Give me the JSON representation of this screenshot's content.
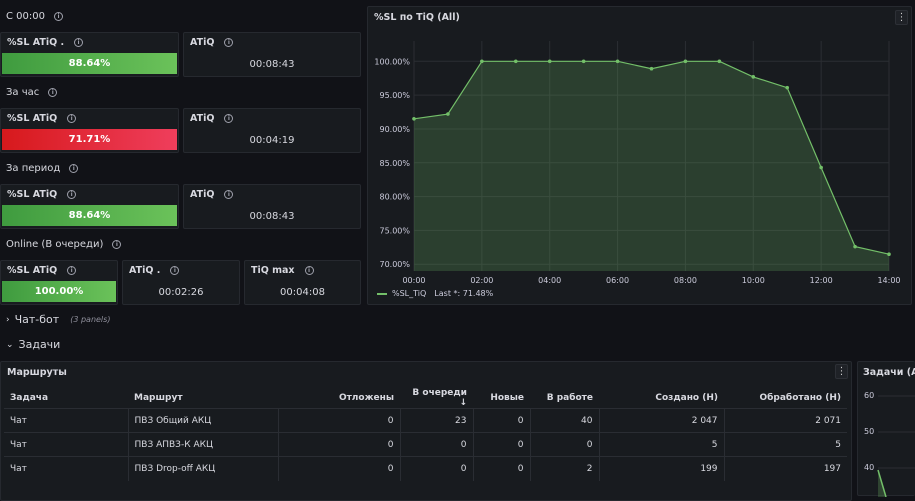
{
  "sections": {
    "s1": "С 00:00",
    "s2": "За час",
    "s3": "За период",
    "s4": "Online (В очереди)"
  },
  "stats": {
    "r1": {
      "sl_title": "%SL ATiQ .",
      "sl_value": "88.64%",
      "atiq_title": "ATiQ",
      "atiq_value": "00:08:43"
    },
    "r2": {
      "sl_title": "%SL ATiQ",
      "sl_value": "71.71%",
      "atiq_title": "ATiQ",
      "atiq_value": "00:04:19"
    },
    "r3": {
      "sl_title": "%SL ATiQ",
      "sl_value": "88.64%",
      "atiq_title": "ATiQ",
      "atiq_value": "00:08:43"
    },
    "r4": {
      "sl_title": "%SL ATiQ",
      "sl_value": "100.00%",
      "atiq_title": "ATiQ .",
      "atiq_value": "00:02:26",
      "tiqmax_title": "TiQ max",
      "tiqmax_value": "00:04:08"
    }
  },
  "colors": {
    "green": "#73bf69",
    "red": "#e0226e",
    "bg": "#111217",
    "panel": "#181b1f"
  },
  "collapsed_row": {
    "title": "Чат-бот",
    "count": "(3 panels)"
  },
  "expanded_row": {
    "title": "Задачи"
  },
  "chart_panel": {
    "title": "%SL по TiQ (All)",
    "legend_series": "%SL_TiQ",
    "legend_last": "Last *: 71.48%"
  },
  "chart_data": {
    "type": "area",
    "x": [
      "00:00",
      "01:00",
      "02:00",
      "03:00",
      "04:00",
      "05:00",
      "06:00",
      "07:00",
      "08:00",
      "09:00",
      "10:00",
      "11:00",
      "12:00",
      "13:00",
      "14:00"
    ],
    "y": [
      91.5,
      92.2,
      100,
      100,
      100,
      100,
      100,
      98.9,
      100,
      100,
      97.7,
      96.1,
      84.3,
      72.6,
      71.48
    ],
    "xticks": [
      "00:00",
      "02:00",
      "04:00",
      "06:00",
      "08:00",
      "10:00",
      "12:00",
      "14:00"
    ],
    "yticks": [
      "70.00%",
      "75.00%",
      "80.00%",
      "85.00%",
      "90.00%",
      "95.00%",
      "100.00%"
    ],
    "ylim": [
      69,
      103
    ],
    "series": [
      {
        "name": "%SL_TiQ",
        "values": [
          91.5,
          92.2,
          100,
          100,
          100,
          100,
          100,
          98.9,
          100,
          100,
          97.7,
          96.1,
          84.3,
          72.6,
          71.48
        ]
      }
    ],
    "grid": true,
    "legend": "bottom-left"
  },
  "routes_table": {
    "title": "Маршруты",
    "headers": [
      "Задача",
      "Маршрут",
      "Отложены",
      "В очереди",
      "Новые",
      "В работе",
      "Создано (Н)",
      "Обработано (Н)"
    ],
    "sort_icon": "arrow-down-icon",
    "rows": [
      [
        "Чат",
        "ПВЗ Общий АКЦ",
        "0",
        "23",
        "0",
        "40",
        "2 047",
        "2 071"
      ],
      [
        "Чат",
        "ПВЗ АПВЗ-К АКЦ",
        "0",
        "0",
        "0",
        "0",
        "5",
        "5"
      ],
      [
        "Чат",
        "ПВЗ Drop-off АКЦ",
        "0",
        "0",
        "0",
        "2",
        "199",
        "197"
      ]
    ]
  },
  "tasks_panel": {
    "title": "Задачи (All",
    "yticks": [
      "60",
      "50",
      "40"
    ]
  },
  "menu_icon": "⋮"
}
